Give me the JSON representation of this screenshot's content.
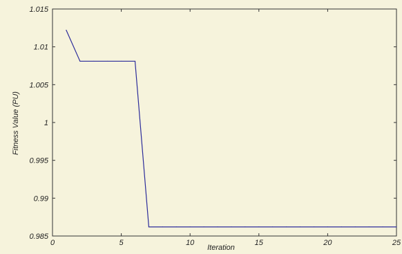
{
  "chart_data": {
    "type": "line",
    "title": "",
    "xlabel": "Iteration",
    "ylabel": "Fitness Value (PU)",
    "xlim": [
      0,
      25
    ],
    "ylim": [
      0.985,
      1.015
    ],
    "xticks": [
      0,
      5,
      10,
      15,
      20,
      25
    ],
    "xtick_labels": [
      "0",
      "5",
      "10",
      "15",
      "20",
      "25"
    ],
    "yticks": [
      0.985,
      0.99,
      0.995,
      1.0,
      1.005,
      1.01,
      1.015
    ],
    "ytick_labels": [
      "0.985",
      "0.99",
      "0.995",
      "1",
      "1.005",
      "1.01",
      "1.015"
    ],
    "grid": false,
    "series": [
      {
        "x": [
          1,
          2,
          3,
          4,
          5,
          6,
          7,
          8,
          9,
          10,
          11,
          12,
          13,
          14,
          15,
          16,
          17,
          18,
          19,
          20,
          21,
          22,
          23,
          24,
          25
        ],
        "y": [
          1.0122,
          1.0081,
          1.0081,
          1.0081,
          1.0081,
          1.0081,
          0.9862,
          0.9862,
          0.9862,
          0.9862,
          0.9862,
          0.9862,
          0.9862,
          0.9862,
          0.9862,
          0.9862,
          0.9862,
          0.9862,
          0.9862,
          0.9862,
          0.9862,
          0.9862,
          0.9862,
          0.9862,
          0.9862
        ],
        "color": "#2b2b9a"
      }
    ],
    "colors": {
      "background": "#f6f3dc",
      "plot_area": "#f6f3dc",
      "axes": "#333333",
      "text": "#222222"
    }
  }
}
